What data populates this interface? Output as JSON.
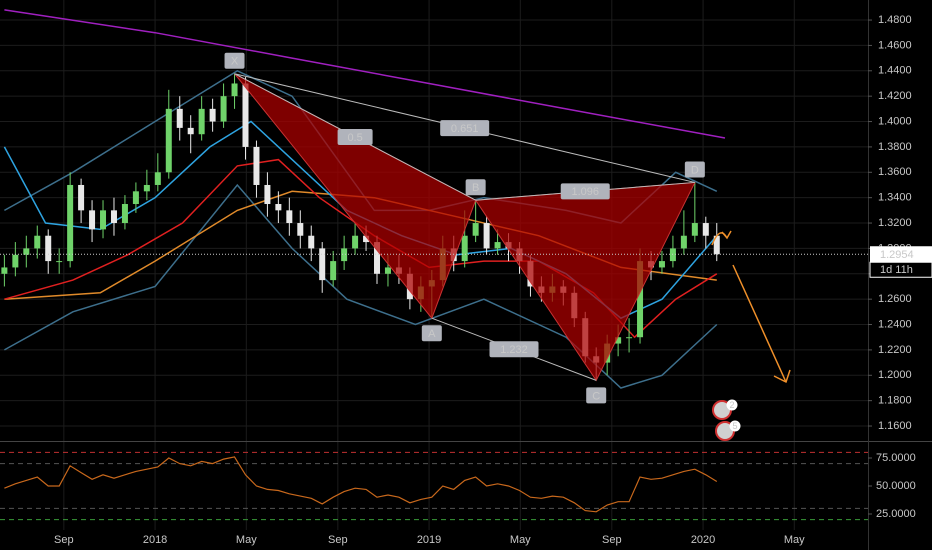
{
  "chart_data": [
    {
      "type": "candlestick",
      "xlim": [
        2017.434,
        2020.602
      ],
      "ylim": [
        1.1482,
        1.4958
      ],
      "xticks": [
        {
          "value": 2017.667,
          "label": "Sep"
        },
        2018,
        {
          "value": 2018.333,
          "label": "May"
        },
        {
          "value": 2018.667,
          "label": "Sep"
        },
        2019,
        {
          "value": 2019.333,
          "label": "May"
        },
        {
          "value": 2019.667,
          "label": "Sep"
        },
        2020,
        {
          "value": 2020.333,
          "label": "May"
        }
      ],
      "yticks": [
        {
          "value": 1.48,
          "label": "1.4800"
        },
        {
          "value": 1.46,
          "label": "1.4600"
        },
        {
          "value": 1.44,
          "label": "1.4400"
        },
        {
          "value": 1.42,
          "label": "1.4200"
        },
        {
          "value": 1.4,
          "label": "1.4000"
        },
        {
          "value": 1.38,
          "label": "1.3800"
        },
        {
          "value": 1.36,
          "label": "1.3600"
        },
        {
          "value": 1.34,
          "label": "1.3400"
        },
        {
          "value": 1.32,
          "label": "1.3200"
        },
        {
          "value": 1.3,
          "label": "1.3000"
        },
        {
          "value": 1.28,
          "label": "1.2800"
        },
        {
          "value": 1.26,
          "label": "1.2600"
        },
        {
          "value": 1.24,
          "label": "1.2400"
        },
        {
          "value": 1.22,
          "label": "1.2200"
        },
        {
          "value": 1.2,
          "label": "1.2000"
        },
        {
          "value": 1.18,
          "label": "1.1800"
        },
        {
          "value": 1.16,
          "label": "1.1600"
        }
      ],
      "grid": true,
      "up_color": "#6fd36a",
      "down_color": "#e8e8e8",
      "candles": {
        "x": [
          2017.45,
          2017.49,
          2017.53,
          2017.57,
          2017.61,
          2017.65,
          2017.69,
          2017.73,
          2017.77,
          2017.81,
          2017.85,
          2017.89,
          2017.93,
          2017.97,
          2018.01,
          2018.05,
          2018.09,
          2018.13,
          2018.17,
          2018.21,
          2018.25,
          2018.29,
          2018.33,
          2018.37,
          2018.41,
          2018.45,
          2018.49,
          2018.53,
          2018.57,
          2018.61,
          2018.65,
          2018.69,
          2018.73,
          2018.77,
          2018.81,
          2018.85,
          2018.89,
          2018.93,
          2018.97,
          2019.01,
          2019.05,
          2019.09,
          2019.13,
          2019.17,
          2019.21,
          2019.25,
          2019.29,
          2019.33,
          2019.37,
          2019.41,
          2019.45,
          2019.49,
          2019.53,
          2019.57,
          2019.61,
          2019.65,
          2019.69,
          2019.73,
          2019.77,
          2019.81,
          2019.85,
          2019.89,
          2019.93,
          2019.97,
          2020.01,
          2020.05
        ],
        "open": [
          1.28,
          1.285,
          1.295,
          1.3,
          1.31,
          1.29,
          1.29,
          1.35,
          1.33,
          1.315,
          1.33,
          1.32,
          1.335,
          1.345,
          1.35,
          1.36,
          1.41,
          1.395,
          1.39,
          1.41,
          1.4,
          1.42,
          1.43,
          1.38,
          1.35,
          1.335,
          1.33,
          1.32,
          1.31,
          1.3,
          1.275,
          1.29,
          1.3,
          1.31,
          1.305,
          1.28,
          1.285,
          1.28,
          1.26,
          1.27,
          1.275,
          1.3,
          1.29,
          1.31,
          1.32,
          1.3,
          1.305,
          1.3,
          1.29,
          1.27,
          1.265,
          1.27,
          1.265,
          1.245,
          1.215,
          1.21,
          1.225,
          1.23,
          1.23,
          1.29,
          1.285,
          1.29,
          1.3,
          1.31,
          1.32,
          1.31
        ],
        "high": [
          1.295,
          1.305,
          1.31,
          1.318,
          1.315,
          1.3,
          1.36,
          1.355,
          1.338,
          1.338,
          1.34,
          1.342,
          1.352,
          1.362,
          1.375,
          1.425,
          1.42,
          1.405,
          1.42,
          1.418,
          1.43,
          1.4377,
          1.435,
          1.385,
          1.36,
          1.345,
          1.34,
          1.33,
          1.318,
          1.305,
          1.298,
          1.31,
          1.32,
          1.318,
          1.31,
          1.295,
          1.295,
          1.285,
          1.278,
          1.283,
          1.31,
          1.31,
          1.33,
          1.338,
          1.325,
          1.315,
          1.312,
          1.305,
          1.295,
          1.278,
          1.28,
          1.275,
          1.27,
          1.25,
          1.222,
          1.232,
          1.24,
          1.245,
          1.3,
          1.298,
          1.298,
          1.31,
          1.33,
          1.352,
          1.325,
          1.32
        ],
        "low": [
          1.27,
          1.278,
          1.285,
          1.292,
          1.28,
          1.28,
          1.285,
          1.32,
          1.305,
          1.308,
          1.31,
          1.315,
          1.328,
          1.338,
          1.345,
          1.355,
          1.385,
          1.375,
          1.385,
          1.392,
          1.395,
          1.41,
          1.37,
          1.34,
          1.325,
          1.32,
          1.31,
          1.3,
          1.29,
          1.265,
          1.27,
          1.283,
          1.295,
          1.298,
          1.272,
          1.27,
          1.272,
          1.252,
          1.25,
          1.245,
          1.27,
          1.282,
          1.285,
          1.305,
          1.295,
          1.295,
          1.29,
          1.28,
          1.262,
          1.258,
          1.258,
          1.255,
          1.238,
          1.21,
          1.196,
          1.2,
          1.215,
          1.218,
          1.225,
          1.275,
          1.28,
          1.285,
          1.295,
          1.305,
          1.3,
          1.29
        ],
        "close": [
          1.285,
          1.295,
          1.3,
          1.31,
          1.29,
          1.29,
          1.35,
          1.33,
          1.315,
          1.33,
          1.32,
          1.335,
          1.345,
          1.35,
          1.36,
          1.41,
          1.395,
          1.39,
          1.41,
          1.4,
          1.42,
          1.43,
          1.38,
          1.35,
          1.335,
          1.33,
          1.32,
          1.31,
          1.3,
          1.275,
          1.29,
          1.3,
          1.31,
          1.305,
          1.28,
          1.285,
          1.28,
          1.26,
          1.27,
          1.275,
          1.3,
          1.29,
          1.31,
          1.32,
          1.3,
          1.305,
          1.3,
          1.29,
          1.27,
          1.265,
          1.27,
          1.265,
          1.245,
          1.215,
          1.21,
          1.225,
          1.23,
          1.23,
          1.29,
          1.285,
          1.29,
          1.3,
          1.31,
          1.32,
          1.31,
          1.2954
        ]
      },
      "lines": [
        {
          "color": "#a020c0",
          "x": [
            2017.45,
            2018.0,
            2018.5,
            2019.0,
            2019.5,
            2020.08
          ],
          "values": [
            1.488,
            1.47,
            1.45,
            1.43,
            1.41,
            1.387
          ]
        },
        {
          "color": "#3d6f8c",
          "x": [
            2017.45,
            2017.7,
            2018.0,
            2018.3,
            2018.5,
            2018.8,
            2019.0,
            2019.2,
            2019.5,
            2019.7,
            2019.9,
            2020.05
          ],
          "values": [
            1.33,
            1.36,
            1.4,
            1.44,
            1.42,
            1.33,
            1.33,
            1.34,
            1.33,
            1.32,
            1.36,
            1.345
          ]
        },
        {
          "color": "#3d6f8c",
          "x": [
            2017.45,
            2017.7,
            2018.0,
            2018.3,
            2018.5,
            2018.7,
            2018.95,
            2019.2,
            2019.5,
            2019.7,
            2019.85,
            2020.05
          ],
          "values": [
            1.22,
            1.25,
            1.27,
            1.35,
            1.3,
            1.26,
            1.24,
            1.26,
            1.23,
            1.19,
            1.2,
            1.24
          ]
        },
        {
          "color": "#e08a2a",
          "x": [
            2017.45,
            2017.8,
            2018.0,
            2018.3,
            2018.5,
            2018.8,
            2019.1,
            2019.4,
            2019.7,
            2020.05
          ],
          "values": [
            1.26,
            1.265,
            1.29,
            1.33,
            1.345,
            1.34,
            1.325,
            1.31,
            1.285,
            1.275
          ]
        },
        {
          "color": "#e02020",
          "x": [
            2017.45,
            2017.7,
            2017.9,
            2018.1,
            2018.3,
            2018.45,
            2018.6,
            2018.8,
            2019.0,
            2019.2,
            2019.4,
            2019.6,
            2019.75,
            2019.9,
            2020.05
          ],
          "values": [
            1.26,
            1.275,
            1.295,
            1.32,
            1.365,
            1.37,
            1.34,
            1.31,
            1.285,
            1.29,
            1.29,
            1.265,
            1.23,
            1.26,
            1.28
          ]
        },
        {
          "color": "#2ea3e0",
          "x": [
            2017.45,
            2017.6,
            2017.8,
            2018.0,
            2018.2,
            2018.35,
            2018.5,
            2018.7,
            2018.9,
            2019.1,
            2019.3,
            2019.5,
            2019.7,
            2019.85,
            2020.05
          ],
          "values": [
            1.38,
            1.32,
            1.315,
            1.34,
            1.38,
            1.4,
            1.37,
            1.33,
            1.31,
            1.295,
            1.3,
            1.28,
            1.245,
            1.26,
            1.31
          ]
        }
      ],
      "pattern": {
        "points": [
          {
            "label": "X",
            "x": 2018.29,
            "y": 1.4377
          },
          {
            "label": "A",
            "x": 2019.01,
            "y": 1.245
          },
          {
            "label": "B",
            "x": 2019.17,
            "y": 1.338
          },
          {
            "label": "C",
            "x": 2019.61,
            "y": 1.196
          },
          {
            "label": "D",
            "x": 2019.97,
            "y": 1.352
          }
        ],
        "ratios": [
          "0.5",
          "0.651",
          "1.096",
          "1.232"
        ]
      },
      "last_price": {
        "value": 1.2954,
        "label": "1.2954"
      },
      "countdown": "1d 11h",
      "event_badges": [
        "2",
        "5"
      ]
    },
    {
      "type": "line",
      "ylim": [
        10.7,
        89.3
      ],
      "yticks": [
        {
          "value": 75,
          "label": "75.0000"
        },
        {
          "value": 50,
          "label": "50.0000"
        },
        {
          "value": 25,
          "label": "25.0000"
        }
      ],
      "levels": [
        {
          "value": 80,
          "color": "#c03030"
        },
        {
          "value": 70,
          "color": "#555555"
        },
        {
          "value": 30,
          "color": "#555555"
        },
        {
          "value": 20,
          "color": "#3a9a3a"
        }
      ],
      "color": "#c8681c",
      "values": [
        48,
        52,
        55,
        58,
        50,
        50,
        68,
        62,
        56,
        60,
        57,
        60,
        63,
        65,
        67,
        75,
        70,
        68,
        72,
        70,
        74,
        76,
        60,
        50,
        47,
        46,
        43,
        41,
        39,
        34,
        40,
        45,
        48,
        47,
        40,
        42,
        40,
        35,
        38,
        40,
        50,
        47,
        55,
        58,
        50,
        52,
        50,
        46,
        40,
        39,
        41,
        40,
        35,
        28,
        27,
        33,
        36,
        36,
        58,
        56,
        57,
        60,
        63,
        65,
        60,
        54
      ]
    }
  ]
}
